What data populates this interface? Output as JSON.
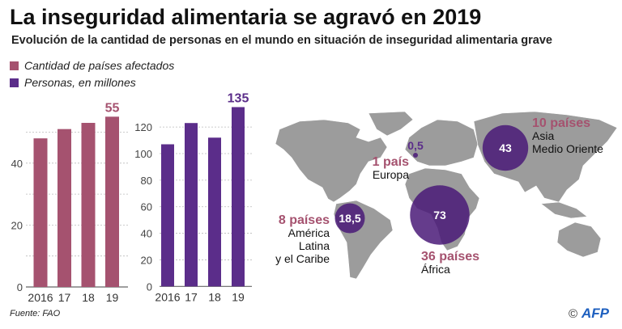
{
  "title": "La inseguridad alimentaria se agravó en 2019",
  "subtitle": "Evolución de la cantidad de personas en el mundo en situación de inseguridad alimentaria grave",
  "legend": [
    {
      "label": "Cantidad de países afectados",
      "color": "#a5526f"
    },
    {
      "label": "Personas, en millones",
      "color": "#5b2d8a"
    }
  ],
  "footer": "Fuente: FAO",
  "credit": {
    "copyright": "©",
    "logo": "AFP",
    "logo_color": "#1d5fbf"
  },
  "chart_data": [
    {
      "type": "bar",
      "title": "Cantidad de países afectados",
      "categories": [
        "2016",
        "17",
        "18",
        "19"
      ],
      "values": [
        48,
        51,
        53,
        55
      ],
      "ylim": [
        0,
        58
      ],
      "yticks": [
        "0",
        "20",
        "40"
      ],
      "ytick_values": [
        0,
        20,
        40
      ],
      "grid_values": [
        10,
        30,
        50
      ],
      "highlight_label": "55",
      "color": "#a5526f",
      "grid": true
    },
    {
      "type": "bar",
      "title": "Personas, en millones",
      "categories": [
        "2016",
        "17",
        "18",
        "19"
      ],
      "values": [
        107,
        123,
        112,
        135
      ],
      "ylim": [
        0,
        140
      ],
      "yticks": [
        "0",
        "20",
        "40",
        "60",
        "80",
        "100",
        "120"
      ],
      "ytick_values": [
        0,
        20,
        40,
        60,
        80,
        100,
        120
      ],
      "highlight_label": "135",
      "color": "#5b2d8a",
      "grid": true
    },
    {
      "type": "bubble-map",
      "regions": [
        {
          "name": "Asia\nMedio Oriente",
          "countries": "10 países",
          "people": 43,
          "value_label": "43"
        },
        {
          "name": "Europa",
          "countries": "1 país",
          "people": 0.5,
          "value_label": "0,5"
        },
        {
          "name": "América\nLatina\ny el Caribe",
          "countries": "8 países",
          "people": 18.5,
          "value_label": "18,5"
        },
        {
          "name": "África",
          "countries": "36 países",
          "people": 73,
          "value_label": "73"
        }
      ]
    }
  ]
}
